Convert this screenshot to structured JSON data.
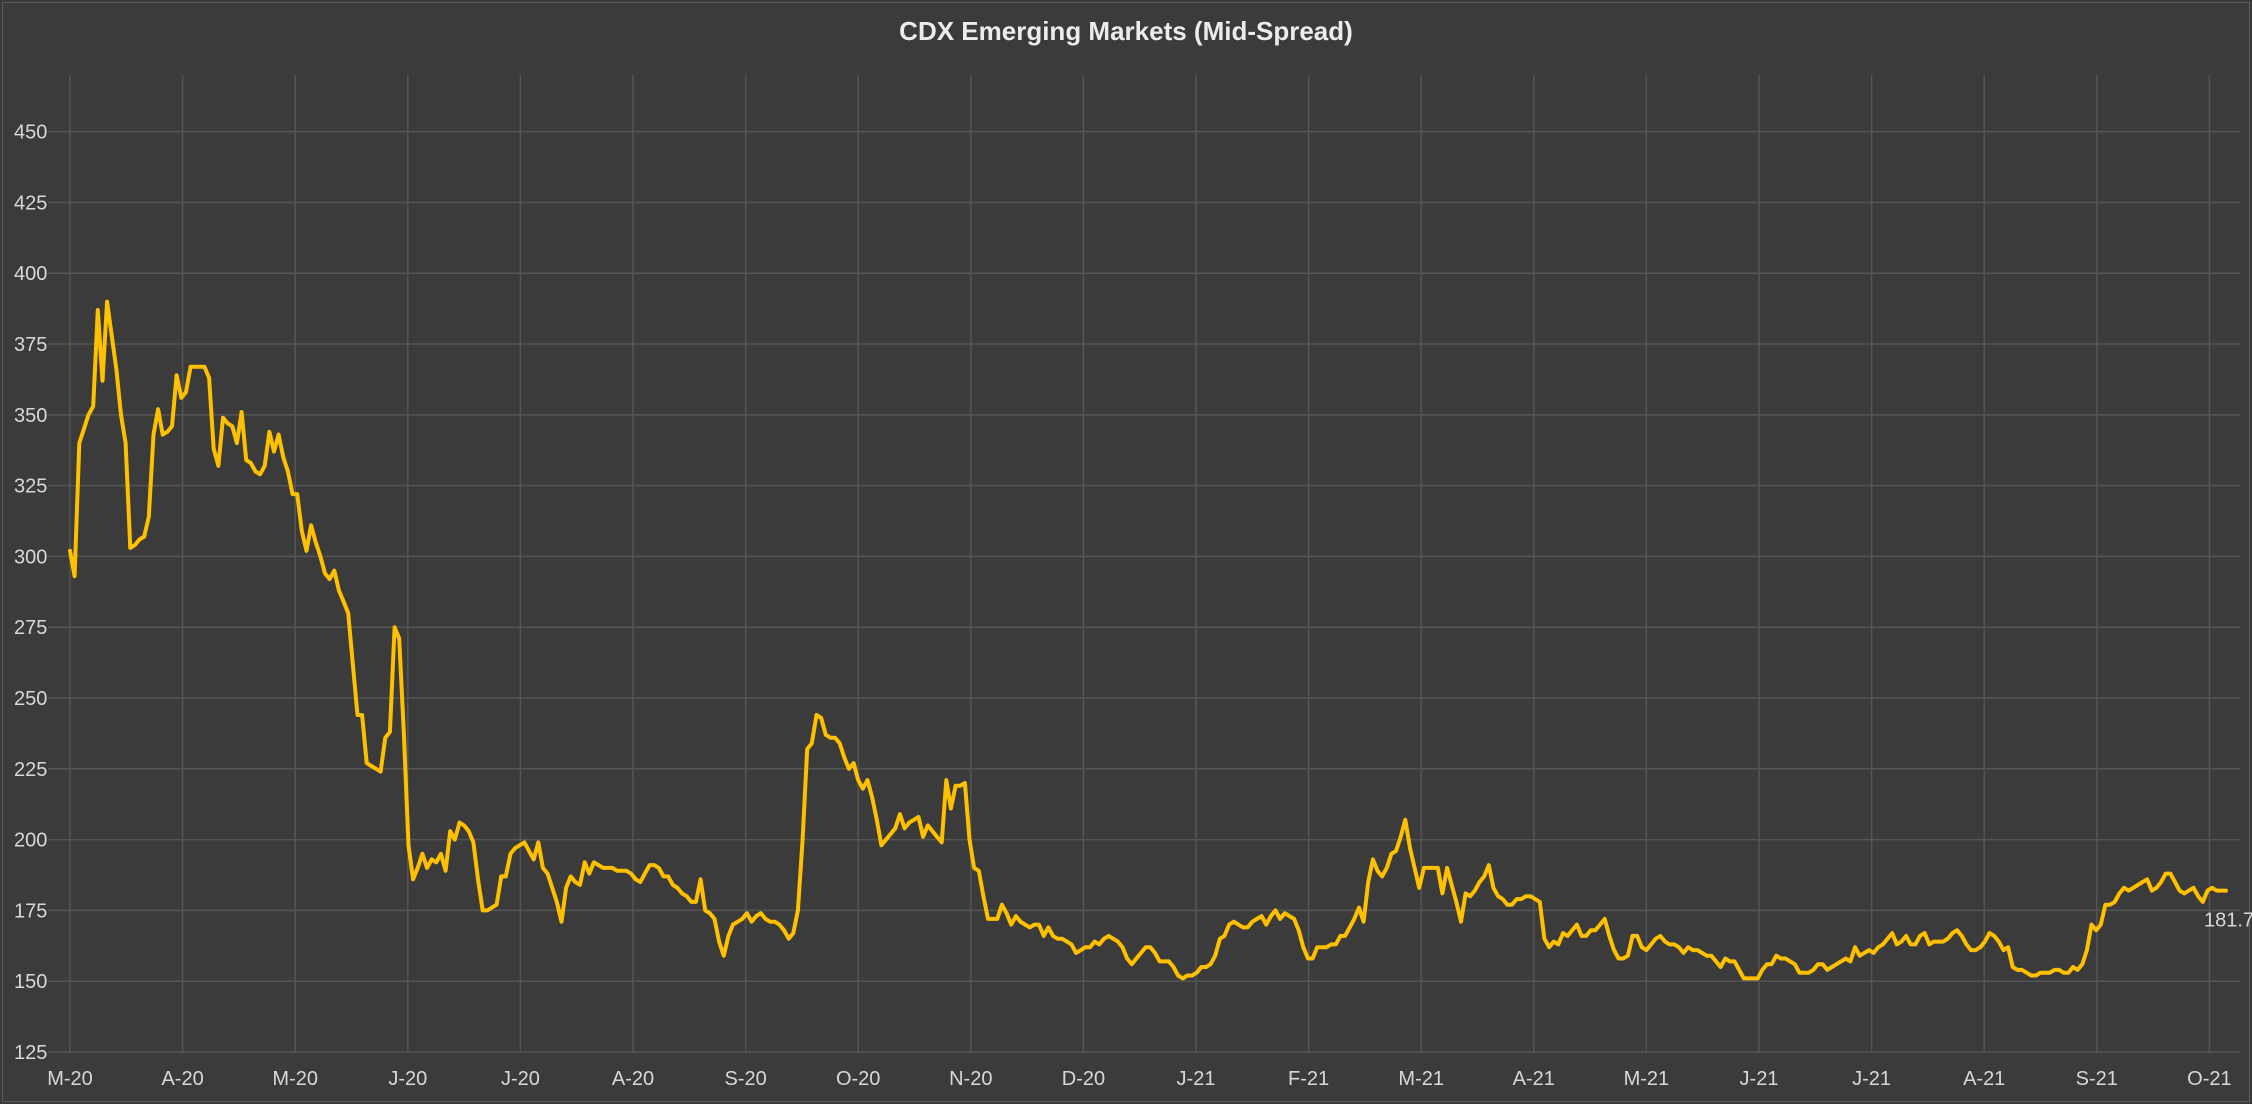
{
  "chart_data": {
    "type": "line",
    "title": "CDX Emerging Markets (Mid-Spread)",
    "xlabel": "",
    "ylabel": "",
    "ylim": [
      125,
      470
    ],
    "yticks": [
      125,
      150,
      175,
      200,
      225,
      250,
      275,
      300,
      325,
      350,
      375,
      400,
      425,
      450
    ],
    "xtick_labels": [
      "M-20",
      "A-20",
      "M-20",
      "J-20",
      "J-20",
      "A-20",
      "S-20",
      "O-20",
      "N-20",
      "D-20",
      "J-21",
      "F-21",
      "M-21",
      "A-21",
      "M-21",
      "J-21",
      "J-21",
      "A-21",
      "S-21",
      "O-21"
    ],
    "grid": true,
    "colors": {
      "series": "#ffc000",
      "background": "#3b3b3b",
      "grid": "#555555",
      "text": "#d8d8d8"
    },
    "last_value_label": "181.7",
    "series": [
      {
        "values": [
          302,
          293,
          340,
          345,
          350,
          353,
          387,
          362,
          390,
          378,
          366,
          350,
          340,
          303,
          304,
          306,
          307,
          314,
          343,
          352,
          343,
          344,
          346,
          364,
          356,
          358,
          367,
          367,
          367,
          367,
          363,
          338,
          332,
          349,
          347,
          346,
          340,
          351,
          334,
          333,
          330,
          329,
          332,
          344,
          337,
          343,
          335,
          330,
          322,
          322,
          309,
          302,
          311,
          305,
          300,
          294,
          292,
          295,
          288,
          284,
          280,
          262,
          244,
          244,
          227,
          226,
          225,
          224,
          236,
          238,
          275,
          271,
          238,
          198,
          186,
          190,
          195,
          190,
          193,
          192,
          195,
          189,
          203,
          200,
          206,
          205,
          203,
          199,
          186,
          175,
          175,
          176,
          177,
          187,
          187,
          195,
          197,
          198,
          199,
          196,
          193,
          199,
          190,
          188,
          183,
          178,
          171,
          183,
          187,
          185,
          184,
          192,
          188,
          192,
          191,
          190,
          190,
          190,
          189,
          189,
          189,
          188,
          186,
          185,
          188,
          191,
          191,
          190,
          187,
          187,
          184,
          183,
          181,
          180,
          178,
          178,
          186,
          175,
          174,
          172,
          164,
          159,
          166,
          170,
          171,
          172,
          174,
          171,
          173,
          174,
          172,
          171,
          171,
          170,
          168,
          165,
          167,
          175,
          200,
          232,
          234,
          244,
          243,
          237,
          236,
          236,
          234,
          229,
          225,
          227,
          221,
          218,
          221,
          215,
          207,
          198,
          200,
          202,
          204,
          209,
          204,
          206,
          207,
          208,
          201,
          205,
          203,
          201,
          199,
          221,
          211,
          219,
          219,
          220,
          200,
          190,
          189,
          180,
          172,
          172,
          172,
          177,
          174,
          170,
          173,
          171,
          170,
          169,
          170,
          170,
          166,
          169,
          166,
          165,
          165,
          164,
          163,
          160,
          161,
          162,
          162,
          164,
          163,
          165,
          166,
          165,
          164,
          162,
          158,
          156,
          158,
          160,
          162,
          162,
          160,
          157,
          157,
          157,
          155,
          152,
          151,
          152,
          152,
          153,
          155,
          155,
          156,
          159,
          165,
          166,
          170,
          171,
          170,
          169,
          169,
          171,
          172,
          173,
          170,
          173,
          175,
          172,
          174,
          173,
          172,
          168,
          162,
          158,
          158,
          162,
          162,
          162,
          163,
          163,
          166,
          166,
          169,
          172,
          176,
          171,
          185,
          193,
          189,
          187,
          190,
          195,
          196,
          201,
          207,
          197,
          190,
          183,
          190,
          190,
          190,
          190,
          181,
          190,
          184,
          178,
          171,
          181,
          180,
          182,
          185,
          187,
          191,
          183,
          180,
          179,
          177,
          177,
          179,
          179,
          180,
          180,
          179,
          178,
          165,
          162,
          164,
          163,
          167,
          166,
          168,
          170,
          166,
          166,
          168,
          168,
          170,
          172,
          166,
          161,
          158,
          158,
          159,
          166,
          166,
          162,
          161,
          163,
          165,
          166,
          164,
          163,
          163,
          162,
          160,
          162,
          161,
          161,
          160,
          159,
          159,
          157,
          155,
          158,
          157,
          157,
          154,
          151,
          151,
          151,
          151,
          154,
          156,
          156,
          159,
          158,
          158,
          157,
          156,
          153,
          153,
          153,
          154,
          156,
          156,
          154,
          155,
          156,
          157,
          158,
          157,
          162,
          159,
          160,
          161,
          160,
          162,
          163,
          165,
          167,
          163,
          164,
          166,
          163,
          163,
          166,
          167,
          163,
          164,
          164,
          164,
          165,
          167,
          168,
          166,
          163,
          161,
          161,
          162,
          164,
          167,
          166,
          164,
          161,
          162,
          155,
          154,
          154,
          153,
          152,
          152,
          153,
          153,
          153,
          154,
          154,
          153,
          153,
          155,
          154,
          156,
          161,
          170,
          168,
          170,
          177,
          177,
          178,
          181,
          183,
          182,
          183,
          184,
          185,
          186,
          182,
          183,
          185,
          188,
          188,
          185,
          182,
          181,
          182,
          183,
          180,
          178,
          182,
          183,
          182,
          182,
          182
        ]
      }
    ]
  }
}
